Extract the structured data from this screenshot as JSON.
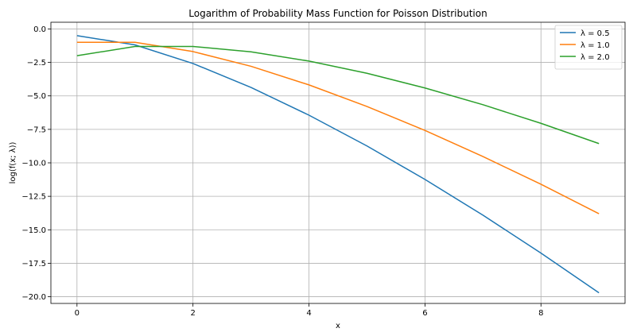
{
  "chart_data": {
    "type": "line",
    "title": "Logarithm of Probability Mass Function for Poisson Distribution",
    "xlabel": "x",
    "ylabel": "log(f(x; λ))",
    "xlim": [
      -0.45,
      9.45
    ],
    "ylim": [
      -20.5,
      0.5
    ],
    "xticks": [
      0,
      2,
      4,
      6,
      8
    ],
    "yticks": [
      0.0,
      -2.5,
      -5.0,
      -7.5,
      -10.0,
      -12.5,
      -15.0,
      -17.5,
      -20.0
    ],
    "xtick_labels": [
      "0",
      "2",
      "4",
      "6",
      "8"
    ],
    "ytick_labels": [
      "0.0",
      "−2.5",
      "−5.0",
      "−7.5",
      "−10.0",
      "−12.5",
      "−15.0",
      "−17.5",
      "−20.0"
    ],
    "grid": true,
    "legend_position": "top-right",
    "x": [
      0,
      1,
      2,
      3,
      4,
      5,
      6,
      7,
      8,
      9
    ],
    "series": [
      {
        "name": "λ = 0.5",
        "color": "#1f77b4",
        "values": [
          -0.5,
          -1.19,
          -2.58,
          -4.37,
          -6.44,
          -8.74,
          -11.24,
          -13.91,
          -16.74,
          -19.71
        ]
      },
      {
        "name": "λ = 1.0",
        "color": "#ff7f0e",
        "values": [
          -1.0,
          -1.0,
          -1.69,
          -2.79,
          -4.18,
          -5.79,
          -7.58,
          -9.53,
          -11.6,
          -13.8
        ]
      },
      {
        "name": "λ = 2.0",
        "color": "#2ca02c",
        "values": [
          -2.0,
          -1.31,
          -1.31,
          -1.71,
          -2.4,
          -3.31,
          -4.41,
          -5.66,
          -7.05,
          -8.56
        ]
      }
    ]
  }
}
